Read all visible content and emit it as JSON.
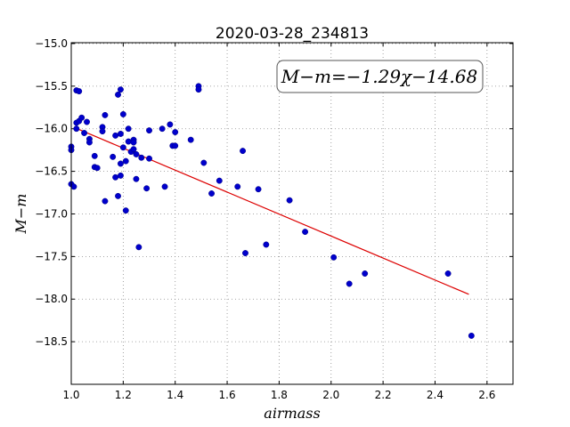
{
  "chart_data": {
    "type": "scatter",
    "title": "2020-03-28_234813",
    "xlabel": "airmass",
    "ylabel": "M−m",
    "xlim": [
      1.0,
      2.7
    ],
    "ylim": [
      -14.99,
      -19.0
    ],
    "xticks": [
      1.0,
      1.2,
      1.4,
      1.6,
      1.8,
      2.0,
      2.2,
      2.4,
      2.6
    ],
    "xtick_labels": [
      "1.0",
      "1.2",
      "1.4",
      "1.6",
      "1.8",
      "2.0",
      "2.2",
      "2.4",
      "2.6"
    ],
    "yticks": [
      -15.0,
      -15.5,
      -16.0,
      -16.5,
      -17.0,
      -17.5,
      -18.0,
      -18.5
    ],
    "ytick_labels": [
      "−15.0",
      "−15.5",
      "−16.0",
      "−16.5",
      "−17.0",
      "−17.5",
      "−18.0",
      "−18.5"
    ],
    "grid": true,
    "annotation": "M−m=−1.29χ−14.68",
    "colors": {
      "points": "#0000cc",
      "fit_line": "#dd0000",
      "grid": "#8c8c8c"
    },
    "fit": {
      "slope": -1.29,
      "intercept": -14.68,
      "x_range": [
        1.03,
        2.53
      ]
    },
    "points": [
      [
        1.0,
        -16.21
      ],
      [
        1.0,
        -16.25
      ],
      [
        1.0,
        -16.65
      ],
      [
        1.01,
        -16.68
      ],
      [
        1.02,
        -15.55
      ],
      [
        1.03,
        -15.56
      ],
      [
        1.02,
        -15.93
      ],
      [
        1.03,
        -15.91
      ],
      [
        1.04,
        -15.87
      ],
      [
        1.02,
        -16.0
      ],
      [
        1.05,
        -16.05
      ],
      [
        1.06,
        -15.92
      ],
      [
        1.07,
        -16.12
      ],
      [
        1.07,
        -16.16
      ],
      [
        1.09,
        -16.45
      ],
      [
        1.1,
        -16.46
      ],
      [
        1.09,
        -16.32
      ],
      [
        1.12,
        -15.98
      ],
      [
        1.12,
        -16.03
      ],
      [
        1.13,
        -15.84
      ],
      [
        1.13,
        -16.85
      ],
      [
        1.16,
        -16.33
      ],
      [
        1.17,
        -16.08
      ],
      [
        1.17,
        -16.57
      ],
      [
        1.18,
        -15.6
      ],
      [
        1.18,
        -16.79
      ],
      [
        1.19,
        -16.06
      ],
      [
        1.19,
        -16.55
      ],
      [
        1.19,
        -16.41
      ],
      [
        1.19,
        -15.54
      ],
      [
        1.2,
        -15.83
      ],
      [
        1.2,
        -16.22
      ],
      [
        1.21,
        -16.38
      ],
      [
        1.21,
        -16.96
      ],
      [
        1.22,
        -16.0
      ],
      [
        1.22,
        -16.15
      ],
      [
        1.23,
        -16.27
      ],
      [
        1.24,
        -16.24
      ],
      [
        1.24,
        -16.13
      ],
      [
        1.24,
        -16.16
      ],
      [
        1.25,
        -16.3
      ],
      [
        1.25,
        -16.59
      ],
      [
        1.26,
        -17.39
      ],
      [
        1.27,
        -16.34
      ],
      [
        1.29,
        -16.7
      ],
      [
        1.3,
        -16.02
      ],
      [
        1.3,
        -16.35
      ],
      [
        1.35,
        -16.0
      ],
      [
        1.36,
        -16.68
      ],
      [
        1.38,
        -15.95
      ],
      [
        1.39,
        -16.2
      ],
      [
        1.4,
        -16.2
      ],
      [
        1.4,
        -16.04
      ],
      [
        1.46,
        -16.13
      ],
      [
        1.49,
        -15.5
      ],
      [
        1.49,
        -15.54
      ],
      [
        1.51,
        -16.4
      ],
      [
        1.54,
        -16.76
      ],
      [
        1.57,
        -16.61
      ],
      [
        1.64,
        -16.68
      ],
      [
        1.66,
        -16.26
      ],
      [
        1.67,
        -17.46
      ],
      [
        1.72,
        -16.71
      ],
      [
        1.75,
        -17.36
      ],
      [
        1.84,
        -16.84
      ],
      [
        1.9,
        -17.21
      ],
      [
        2.01,
        -17.51
      ],
      [
        2.07,
        -17.82
      ],
      [
        2.13,
        -17.7
      ],
      [
        2.45,
        -17.7
      ],
      [
        2.54,
        -18.43
      ]
    ]
  }
}
